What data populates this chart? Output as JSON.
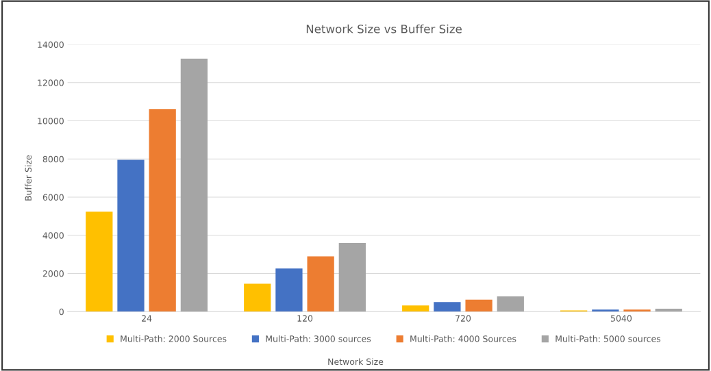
{
  "chart_data": {
    "type": "bar",
    "title": "Network Size vs Buffer Size",
    "xlabel": "Network Size",
    "ylabel": "Buffer Size",
    "categories": [
      "24",
      "120",
      "720",
      "5040"
    ],
    "series": [
      {
        "name": "Multi-Path: 2000 Sources",
        "color": "#ffc000",
        "values": [
          5240,
          1465,
          320,
          60
        ]
      },
      {
        "name": "Multi-Path: 3000 sources",
        "color": "#4472c4",
        "values": [
          7960,
          2260,
          500,
          110
        ]
      },
      {
        "name": "Multi-Path: 4000 Sources",
        "color": "#ed7d31",
        "values": [
          10620,
          2900,
          630,
          110
        ]
      },
      {
        "name": "Multi-Path: 5000 sources",
        "color": "#a5a5a5",
        "values": [
          13260,
          3600,
          800,
          155
        ]
      }
    ],
    "ylim": [
      0,
      14000
    ],
    "yticks": [
      0,
      2000,
      4000,
      6000,
      8000,
      10000,
      12000,
      14000
    ],
    "grid": "y",
    "legend": "bottom"
  }
}
